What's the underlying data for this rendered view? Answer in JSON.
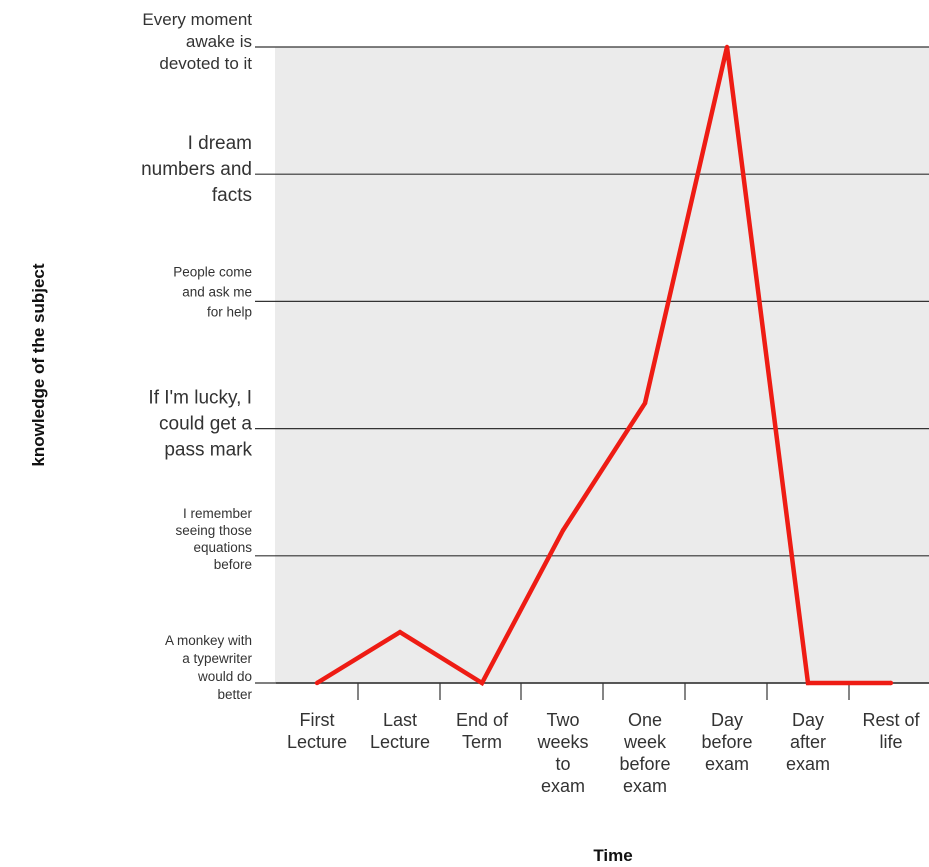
{
  "chart_data": {
    "type": "line",
    "title": "",
    "xlabel": "Time",
    "ylabel": "knowledge of the subject",
    "grid": true,
    "legend": "none",
    "colors": {
      "line": "#ee1c14",
      "plot_background": "#ebebeb",
      "gridline": "#333333"
    },
    "x_ticks": [
      "First Lecture",
      "Last Lecture",
      "End of Term",
      "Two weeks to exam",
      "One week before exam",
      "Day before exam",
      "Day after exam",
      "Rest of life"
    ],
    "x_tick_lines": [
      [
        "First",
        "Lecture"
      ],
      [
        "Last",
        "Lecture"
      ],
      [
        "End of",
        "Term"
      ],
      [
        "Two",
        "weeks",
        "to",
        "exam"
      ],
      [
        "One",
        "week",
        "before",
        "exam"
      ],
      [
        "Day",
        "before",
        "exam"
      ],
      [
        "Day",
        "after",
        "exam"
      ],
      [
        "Rest of",
        "life"
      ]
    ],
    "y_ticks": [
      "A monkey with a typewriter would do better",
      "I remember seeing those equations before",
      "If I'm lucky, I could get a pass mark",
      "People come and ask me for help",
      "I dream numbers and facts",
      "Every moment awake is devoted to it"
    ],
    "y_tick_lines": [
      [
        "A monkey with",
        "a typewriter",
        "would do",
        "better"
      ],
      [
        "I remember",
        "seeing those",
        "equations",
        "before"
      ],
      [
        "If I'm lucky, I",
        "could get a",
        "pass mark"
      ],
      [
        "People come",
        "and ask me",
        "for help"
      ],
      [
        "I dream",
        "numbers and",
        "facts"
      ],
      [
        "Every moment",
        "awake is",
        "devoted to it"
      ]
    ],
    "ylim": [
      0,
      5
    ],
    "series": [
      {
        "x": [
          "First Lecture",
          "Last Lecture",
          "End of Term",
          "Two weeks to exam",
          "One week before exam",
          "Day before exam",
          "Day after exam",
          "Rest of life"
        ],
        "values": [
          0,
          0.4,
          0,
          1.2,
          2.2,
          5,
          0,
          0
        ]
      }
    ]
  }
}
